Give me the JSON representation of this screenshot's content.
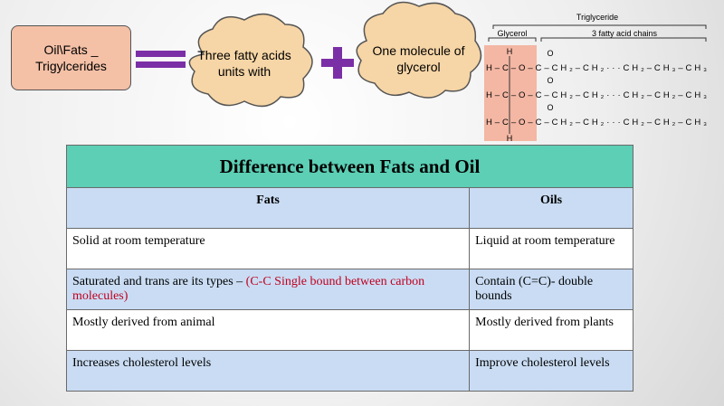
{
  "header": {
    "box_label": "Oil\\Fats _ Trigylcerides",
    "cloud1": "Three fatty acids units with",
    "cloud2": "One molecule of glycerol"
  },
  "diagram": {
    "title": "Triglyceride",
    "glycerol_label": "Glycerol",
    "chains_label": "3 fatty acid chains",
    "top_atom": "H",
    "bottom_atom": "H",
    "carbonyl": "O",
    "rows": [
      "H–C–O–C–CH₂–CH₂···CH₂–CH₃–CH₃",
      "H–C–O–C–CH₂–CH₂···CH₂–CH₂–CH₃",
      "H–C–O–C–CH₂–CH₂···CH₂–CH₂–CH₃"
    ]
  },
  "table": {
    "title": "Difference between Fats and Oil",
    "headers": [
      "Fats",
      "Oils"
    ],
    "rows": [
      [
        "Solid at room temperature",
        "Liquid at room temperature"
      ],
      [
        {
          "text": "Saturated and trans are its types – ",
          "highlight": "(C-C Single bound between carbon molecules)"
        },
        "Contain (C=C)- double  bounds"
      ],
      [
        "Mostly derived from animal",
        "Mostly derived from plants"
      ],
      [
        "Increases cholesterol levels",
        "Improve cholesterol levels"
      ]
    ]
  }
}
